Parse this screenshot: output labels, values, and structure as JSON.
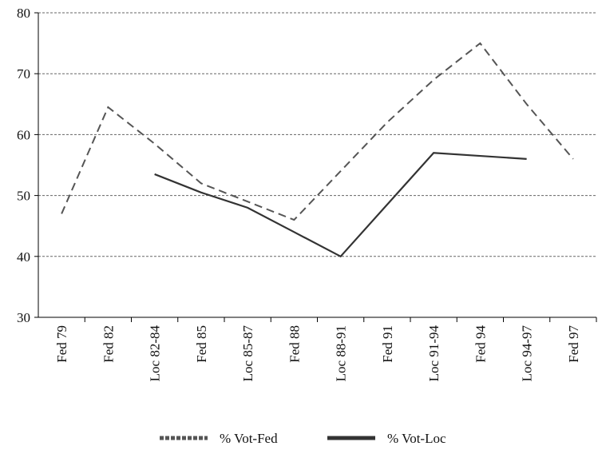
{
  "chart_data": {
    "type": "line",
    "categories": [
      "Fed 79",
      "Fed 82",
      "Loc 82-84",
      "Fed 85",
      "Loc 85-87",
      "Fed 88",
      "Loc 88-91",
      "Fed 91",
      "Loc 91-94",
      "Fed 94",
      "Loc 94-97",
      "Fed 97"
    ],
    "series": [
      {
        "name": "% Vot-Fed",
        "color": "#555555",
        "dash": true,
        "values": [
          47,
          64.5,
          58.5,
          52,
          49,
          46,
          54,
          62,
          69,
          75,
          65,
          56
        ]
      },
      {
        "name": "% Vot-Loc",
        "color": "#333333",
        "dash": false,
        "values": [
          null,
          null,
          53.5,
          50.5,
          48,
          44,
          40,
          48.5,
          57,
          56.5,
          56,
          null
        ]
      }
    ],
    "ylim": [
      30,
      80
    ],
    "yticks": [
      30,
      40,
      50,
      60,
      70,
      80
    ],
    "grid": true,
    "legend": "bottom"
  }
}
